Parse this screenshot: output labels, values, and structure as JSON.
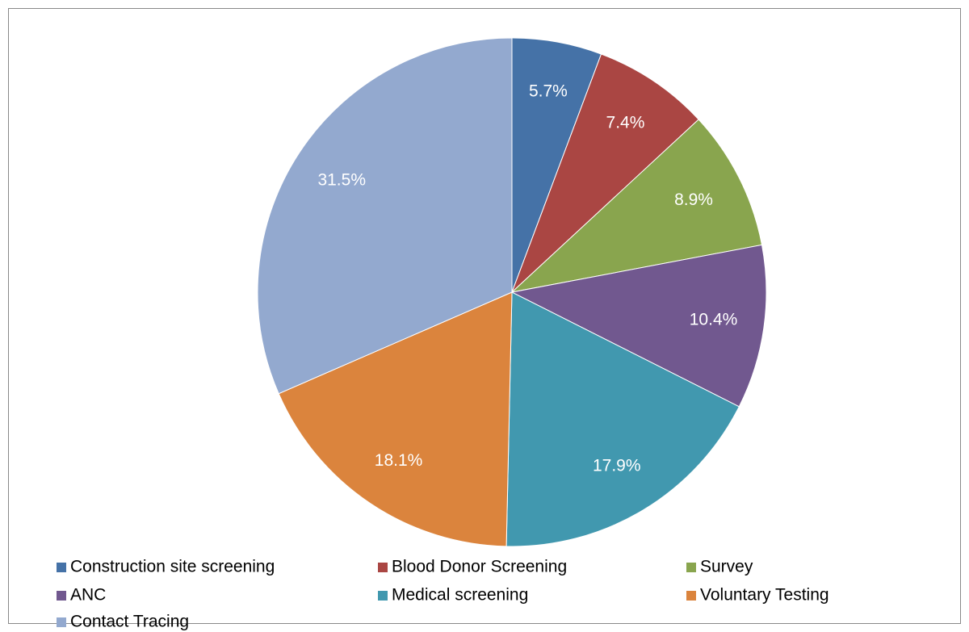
{
  "chart_data": {
    "type": "pie",
    "categories": [
      "Construction site screening",
      "Blood Donor Screening",
      "Survey",
      "ANC",
      "Medical screening",
      "Voluntary Testing",
      "Contact Tracing"
    ],
    "values": [
      5.7,
      7.4,
      8.9,
      10.4,
      17.9,
      18.1,
      31.5
    ],
    "value_labels": [
      "5.7%",
      "7.4%",
      "8.9%",
      "10.4%",
      "17.9%",
      "18.1%",
      "31.5%"
    ],
    "colors": [
      "#4572a7",
      "#aa4643",
      "#89a54e",
      "#71588f",
      "#4198af",
      "#db843d",
      "#93a9cf"
    ],
    "legend": "bottom"
  }
}
